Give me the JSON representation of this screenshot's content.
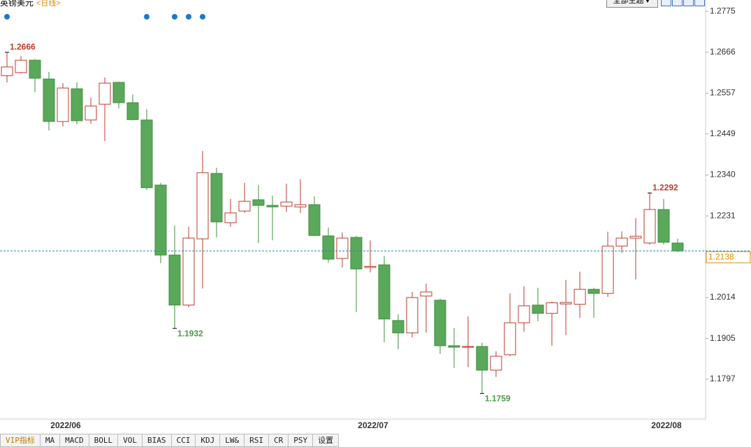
{
  "chart_data": {
    "type": "candlestick",
    "title": "英镑美元",
    "subtitle": "<日线>",
    "categories": [
      null,
      null,
      null,
      null,
      "2022/06",
      null,
      null,
      null,
      null,
      null,
      null,
      null,
      null,
      null,
      null,
      null,
      null,
      null,
      null,
      null,
      null,
      null,
      null,
      null,
      null,
      null,
      "2022/07",
      null,
      null,
      null,
      null,
      null,
      null,
      null,
      null,
      null,
      null,
      null,
      null,
      null,
      null,
      null,
      null,
      null,
      null,
      null,
      null,
      "2022/08",
      null
    ],
    "open": [
      1.2604,
      1.2612,
      1.2645,
      1.2595,
      1.2482,
      1.2569,
      1.2486,
      1.2528,
      1.2586,
      1.2532,
      1.2486,
      1.2313,
      1.2127,
      1.1994,
      1.217,
      1.2344,
      1.2213,
      1.2244,
      1.2274,
      1.2259,
      1.2257,
      1.2255,
      1.2261,
      1.2178,
      1.2118,
      1.2174,
      1.2094,
      1.2101,
      1.1953,
      1.192,
      1.2018,
      1.2007,
      1.1886,
      1.1882,
      1.1884,
      1.1821,
      1.1862,
      1.1947,
      1.1994,
      1.1972,
      1.1997,
      1.1996,
      1.2036,
      1.2025,
      1.2151,
      1.2172,
      1.2159,
      1.2248,
      1.2159
    ],
    "high": [
      1.2666,
      1.2656,
      1.2648,
      1.2614,
      1.2584,
      1.2586,
      1.2545,
      1.2599,
      1.2588,
      1.2554,
      1.2515,
      1.2319,
      1.2205,
      1.2202,
      1.2404,
      1.2359,
      1.2276,
      1.2319,
      1.2313,
      1.2285,
      1.2317,
      1.2328,
      1.2283,
      1.22,
      1.2187,
      1.2178,
      1.2166,
      1.2124,
      1.197,
      1.2029,
      1.2051,
      1.2011,
      1.1933,
      1.1964,
      1.1894,
      1.1871,
      1.2025,
      1.2044,
      1.204,
      1.2003,
      1.2061,
      1.2083,
      1.204,
      1.2189,
      1.219,
      1.2225,
      1.2292,
      1.2276,
      1.217
    ],
    "low": [
      1.2586,
      1.261,
      1.256,
      1.2458,
      1.2469,
      1.2474,
      1.2476,
      1.243,
      1.2517,
      1.2485,
      1.23,
      1.2105,
      1.1932,
      1.1988,
      1.2038,
      1.2174,
      1.2202,
      1.2239,
      1.2159,
      1.2166,
      1.2242,
      1.2239,
      1.2178,
      1.2107,
      1.2094,
      1.1975,
      1.2081,
      1.1895,
      1.1877,
      1.1908,
      1.1921,
      1.1864,
      1.1827,
      1.1829,
      1.1759,
      1.1803,
      1.1858,
      1.1923,
      1.1951,
      1.1886,
      1.1914,
      1.196,
      1.196,
      1.2016,
      1.2133,
      1.2062,
      1.2155,
      1.2155,
      1.2135
    ],
    "close": [
      1.2627,
      1.2645,
      1.2597,
      1.2482,
      1.2571,
      1.2484,
      1.2523,
      1.2584,
      1.2532,
      1.2487,
      1.2306,
      1.2127,
      1.1994,
      1.2172,
      1.2346,
      1.2215,
      1.2239,
      1.227,
      1.2259,
      1.2255,
      1.2268,
      1.2261,
      1.2179,
      1.2116,
      1.2172,
      1.209,
      1.2097,
      1.1957,
      1.192,
      1.2014,
      1.2029,
      1.1886,
      1.1882,
      1.1884,
      1.1821,
      1.1858,
      1.1947,
      1.1992,
      1.1972,
      1.2,
      1.2001,
      1.2036,
      1.2025,
      1.2151,
      1.2172,
      1.2177,
      1.2248,
      1.2161,
      1.2138
    ],
    "up_color": "#c23a2e",
    "down_color": "#5aa85a",
    "annotations": [
      1.2666,
      1.1932,
      1.1759,
      1.2292
    ],
    "last_price": 1.2138,
    "signals": [
      0,
      10,
      12,
      13,
      14
    ],
    "ylim": [
      1.1691,
      1.2805
    ],
    "yticks": [
      1.2775,
      1.2666,
      1.2557,
      1.2449,
      {
        "value": 1.234,
        "label": "1.2340"
      },
      1.2231,
      1.2014,
      1.1905,
      1.1797
    ]
  },
  "toolbar": {
    "theme_button": "全部主题▼"
  },
  "tabs": [
    "VIP指标",
    "MA",
    "MACD",
    "BOLL",
    "VOL",
    "BIAS",
    "CCI",
    "KDJ",
    "LW&",
    "RSI",
    "CR",
    "PSY",
    "设置"
  ]
}
